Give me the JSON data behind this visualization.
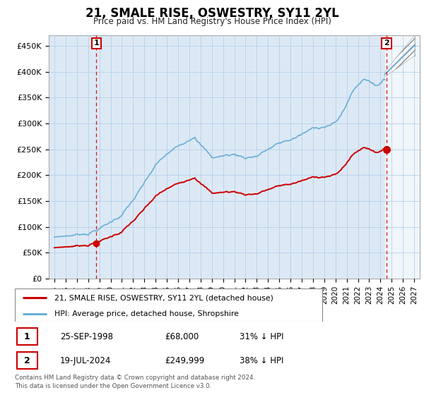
{
  "title": "21, SMALE RISE, OSWESTRY, SY11 2YL",
  "subtitle": "Price paid vs. HM Land Registry's House Price Index (HPI)",
  "ylim": [
    0,
    470000
  ],
  "yticks": [
    0,
    50000,
    100000,
    150000,
    200000,
    250000,
    300000,
    350000,
    400000,
    450000
  ],
  "ytick_labels": [
    "£0",
    "£50K",
    "£100K",
    "£150K",
    "£200K",
    "£250K",
    "£300K",
    "£350K",
    "£400K",
    "£450K"
  ],
  "xlim_start": 1994.5,
  "xlim_end": 2027.5,
  "xticks": [
    1995,
    1996,
    1997,
    1998,
    1999,
    2000,
    2001,
    2002,
    2003,
    2004,
    2005,
    2006,
    2007,
    2008,
    2009,
    2010,
    2011,
    2012,
    2013,
    2014,
    2015,
    2016,
    2017,
    2018,
    2019,
    2020,
    2021,
    2022,
    2023,
    2024,
    2025,
    2026,
    2027
  ],
  "hpi_color": "#6baed6",
  "price_color": "#cc0000",
  "plot_bg_color": "#dce9f5",
  "bg_color": "#ffffff",
  "grid_color": "#b8cfe8",
  "hatch_bg_color": "#e8e8e8",
  "marker1_date": 1998.73,
  "marker1_price": 68000,
  "marker2_date": 2024.54,
  "marker2_price": 249999,
  "transaction1_label": "25-SEP-1998",
  "transaction1_price": "£68,000",
  "transaction1_hpi": "31% ↓ HPI",
  "transaction2_label": "19-JUL-2024",
  "transaction2_price": "£249,999",
  "transaction2_hpi": "38% ↓ HPI",
  "legend_line1": "21, SMALE RISE, OSWESTRY, SY11 2YL (detached house)",
  "legend_line2": "HPI: Average price, detached house, Shropshire",
  "footnote": "Contains HM Land Registry data © Crown copyright and database right 2024.\nThis data is licensed under the Open Government Licence v3.0."
}
